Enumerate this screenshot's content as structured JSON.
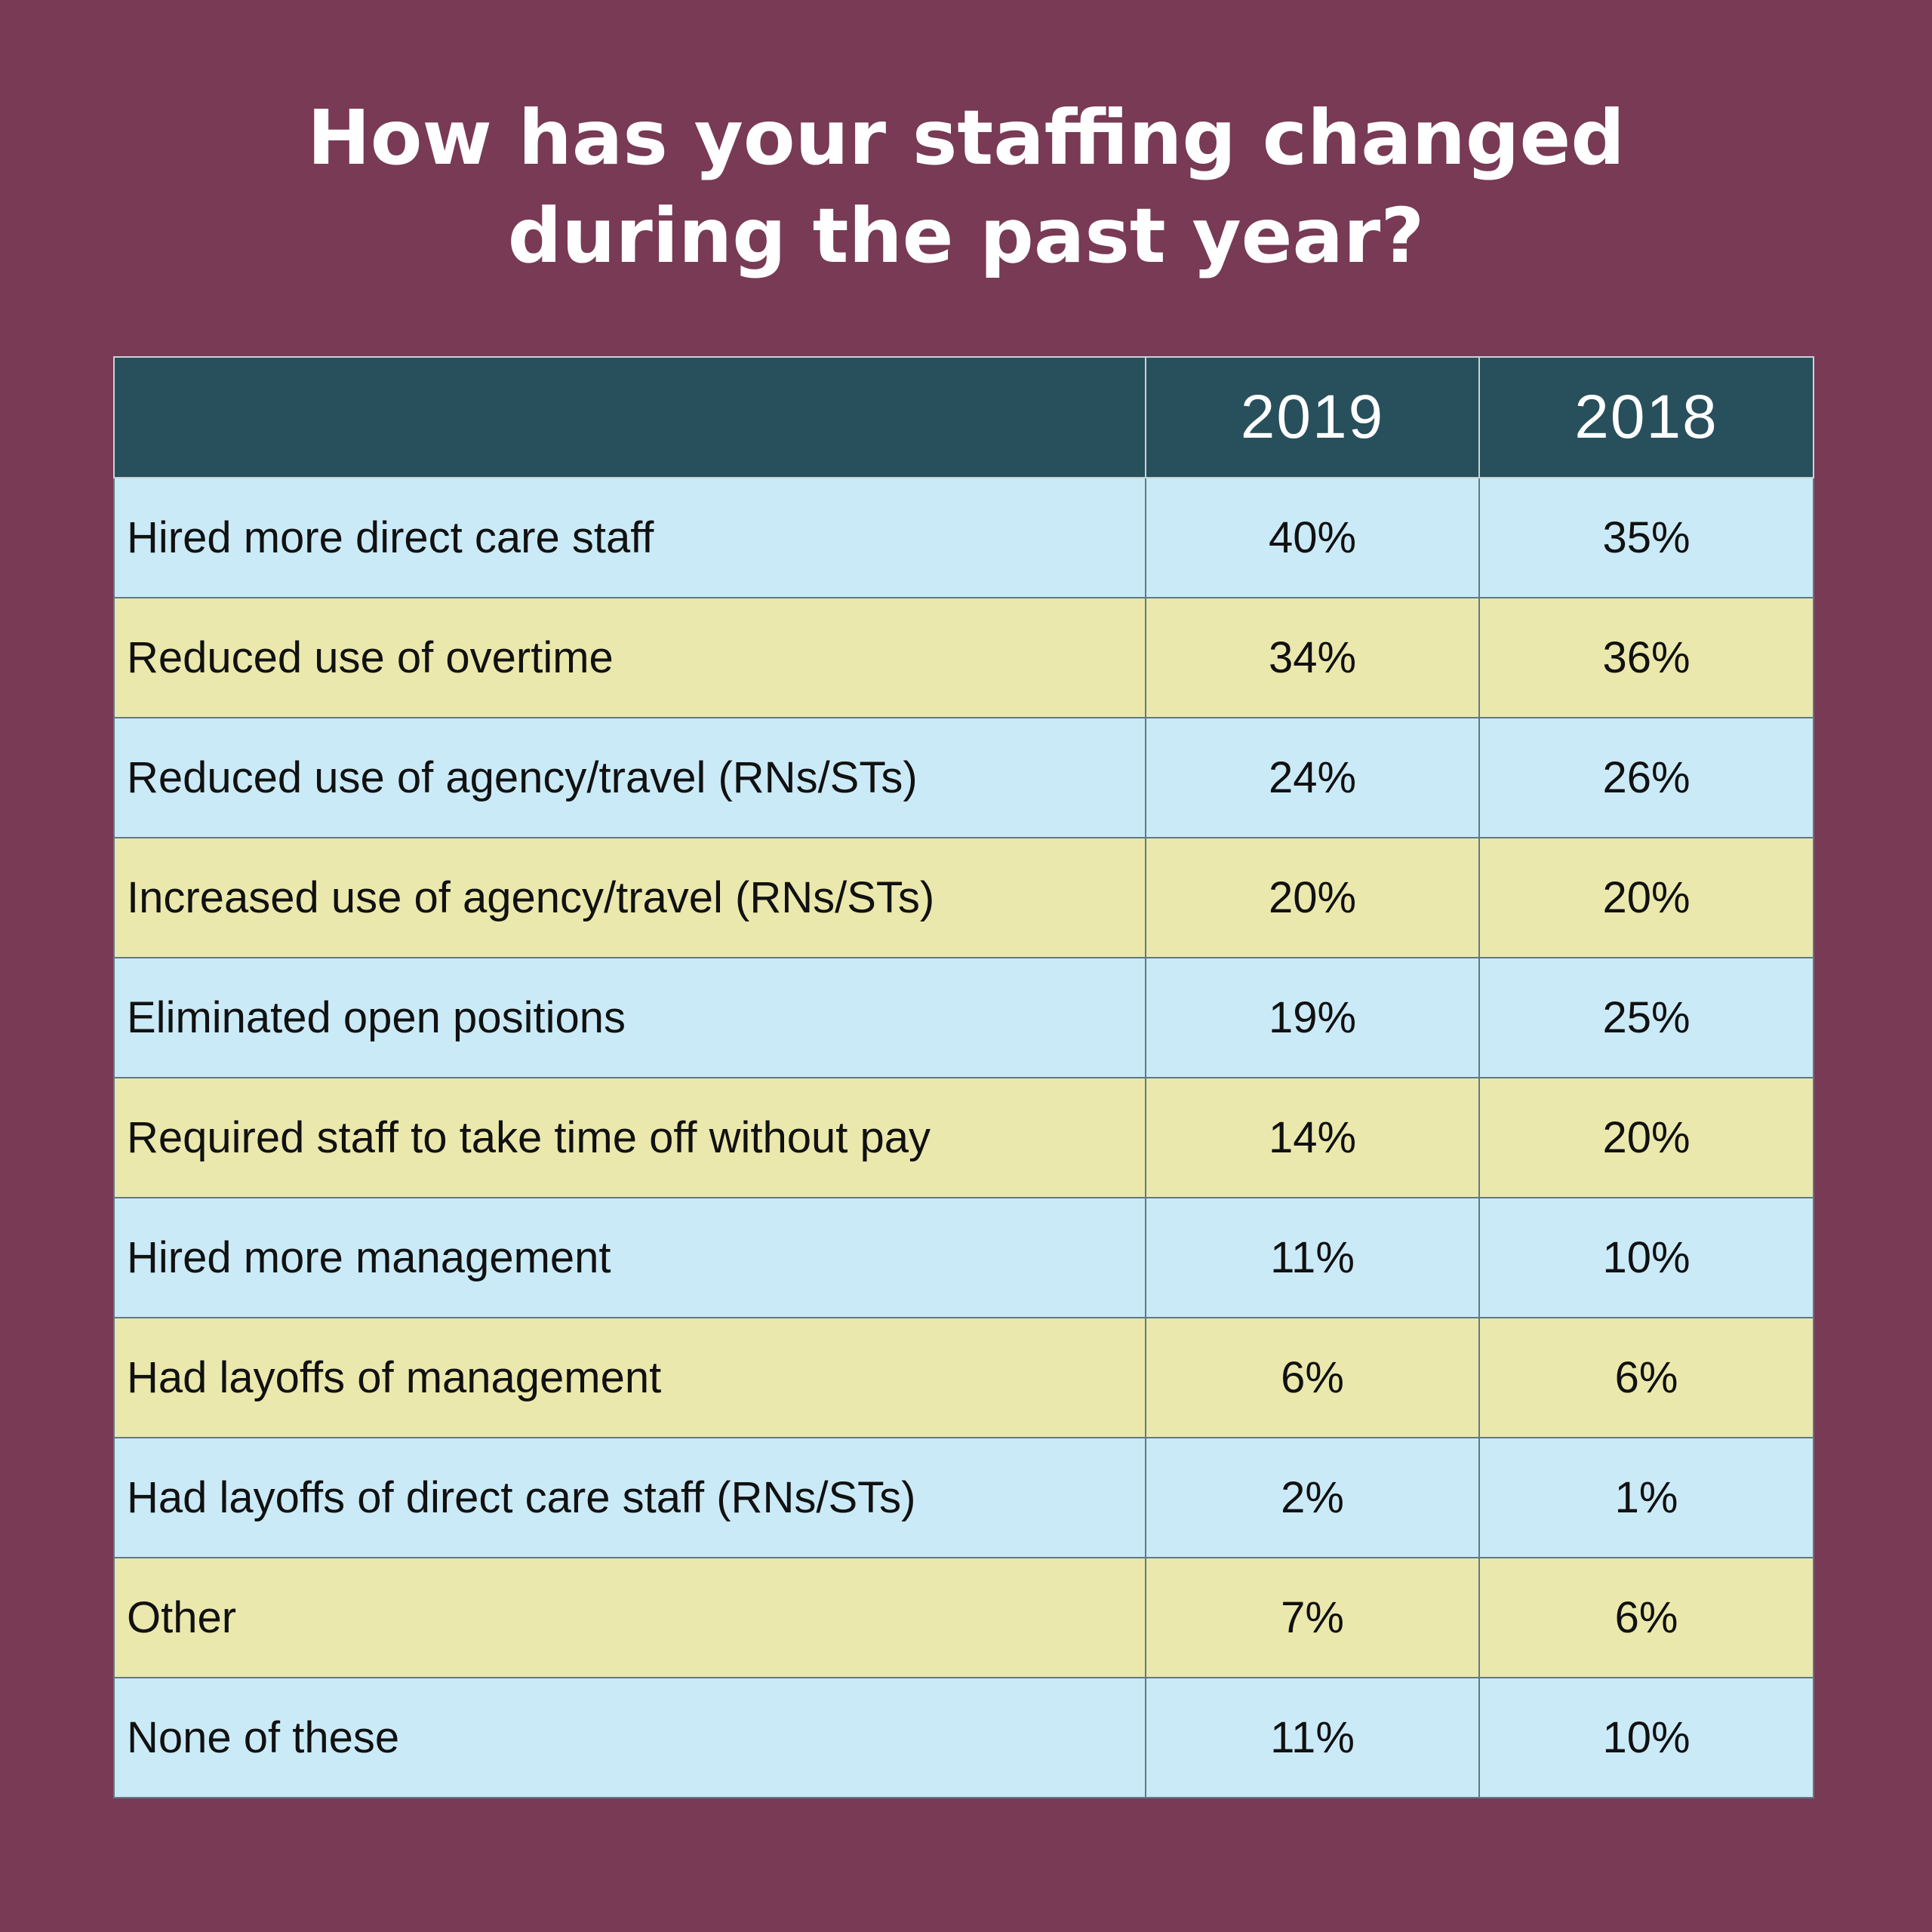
{
  "title_lines": [
    "How has your staffing changed",
    "during the past year?"
  ],
  "colors": {
    "background": "#783a55",
    "header": "#284f5c",
    "row_blue": "#cbeaf7",
    "row_yellow": "#ebe8ad"
  },
  "chart_data": {
    "type": "table",
    "title": "How has your staffing changed during the past year?",
    "columns": [
      "",
      "2019",
      "2018"
    ],
    "rows": [
      {
        "label": "Hired more direct care staff",
        "y2019": "40%",
        "y2018": "35%"
      },
      {
        "label": "Reduced use of overtime",
        "y2019": "34%",
        "y2018": "36%"
      },
      {
        "label": "Reduced use of agency/travel (RNs/STs)",
        "y2019": "24%",
        "y2018": "26%"
      },
      {
        "label": "Increased use of agency/travel (RNs/STs)",
        "y2019": "20%",
        "y2018": "20%"
      },
      {
        "label": "Eliminated open positions",
        "y2019": "19%",
        "y2018": "25%"
      },
      {
        "label": "Required staff to take time off without pay",
        "y2019": "14%",
        "y2018": "20%"
      },
      {
        "label": "Hired more management",
        "y2019": "11%",
        "y2018": "10%"
      },
      {
        "label": "Had layoffs of management",
        "y2019": "6%",
        "y2018": "6%"
      },
      {
        "label": "Had layoffs of direct care staff (RNs/STs)",
        "y2019": "2%",
        "y2018": "1%"
      },
      {
        "label": "Other",
        "y2019": "7%",
        "y2018": "6%"
      },
      {
        "label": "None of these",
        "y2019": "11%",
        "y2018": "10%"
      }
    ]
  }
}
